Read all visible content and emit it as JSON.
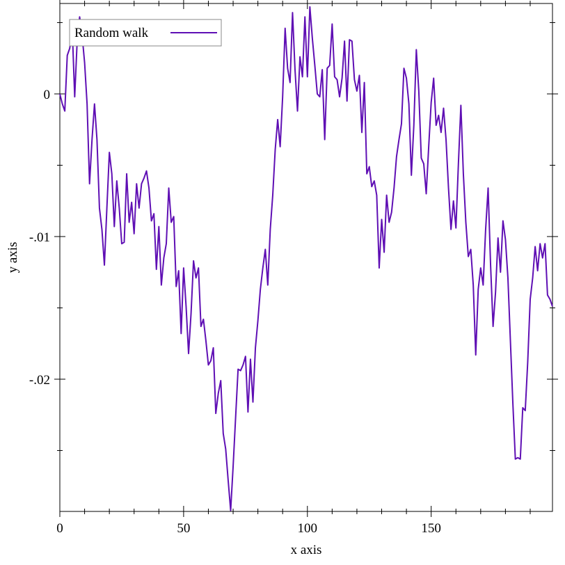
{
  "chart_data": {
    "type": "line",
    "xlabel": "x axis",
    "ylabel": "y axis",
    "x": [
      0,
      1,
      2,
      3,
      4,
      5,
      6,
      7,
      8,
      9,
      10,
      11,
      12,
      13,
      14,
      15,
      16,
      17,
      18,
      19,
      20,
      21,
      22,
      23,
      24,
      25,
      26,
      27,
      28,
      29,
      30,
      31,
      32,
      33,
      34,
      35,
      36,
      37,
      38,
      39,
      40,
      41,
      42,
      43,
      44,
      45,
      46,
      47,
      48,
      49,
      50,
      51,
      52,
      53,
      54,
      55,
      56,
      57,
      58,
      59,
      60,
      61,
      62,
      63,
      64,
      65,
      66,
      67,
      68,
      69,
      70,
      71,
      72,
      73,
      74,
      75,
      76,
      77,
      78,
      79,
      80,
      81,
      82,
      83,
      84,
      85,
      86,
      87,
      88,
      89,
      90,
      91,
      92,
      93,
      94,
      95,
      96,
      97,
      98,
      99,
      100,
      101,
      102,
      103,
      104,
      105,
      106,
      107,
      108,
      109,
      110,
      111,
      112,
      113,
      114,
      115,
      116,
      117,
      118,
      119,
      120,
      121,
      122,
      123,
      124,
      125,
      126,
      127,
      128,
      129,
      130,
      131,
      132,
      133,
      134,
      135,
      136,
      137,
      138,
      139,
      140,
      141,
      142,
      143,
      144,
      145,
      146,
      147,
      148,
      149,
      150,
      151,
      152,
      153,
      154,
      155,
      156,
      157,
      158,
      159,
      160,
      161,
      162,
      163,
      164,
      165,
      166,
      167,
      168,
      169,
      170,
      171,
      172,
      173,
      174,
      175,
      176,
      177,
      178,
      179,
      180,
      181,
      182,
      183,
      184,
      185,
      186,
      187,
      188,
      189,
      190,
      191,
      192,
      193,
      194,
      195,
      196,
      197,
      198,
      199
    ],
    "series": [
      {
        "name": "Random walk",
        "color": "#5f0fb4",
        "values": [
          0,
          -0.0007,
          -0.0012,
          0.0027,
          0.0032,
          0.0046,
          -0.0002,
          0.0037,
          0.0054,
          0.0041,
          0.0022,
          -0.0007,
          -0.0063,
          -0.0032,
          -0.0007,
          -0.0032,
          -0.008,
          -0.0095,
          -0.012,
          -0.008,
          -0.0041,
          -0.0056,
          -0.0093,
          -0.0061,
          -0.008,
          -0.0105,
          -0.0104,
          -0.0056,
          -0.009,
          -0.0076,
          -0.0098,
          -0.0063,
          -0.008,
          -0.0063,
          -0.0059,
          -0.0054,
          -0.0066,
          -0.0089,
          -0.0084,
          -0.0123,
          -0.0093,
          -0.0134,
          -0.0115,
          -0.0105,
          -0.0066,
          -0.009,
          -0.0086,
          -0.0135,
          -0.0124,
          -0.0168,
          -0.0122,
          -0.0149,
          -0.0182,
          -0.0154,
          -0.0117,
          -0.0129,
          -0.0122,
          -0.0163,
          -0.0158,
          -0.0173,
          -0.019,
          -0.0187,
          -0.0178,
          -0.0224,
          -0.021,
          -0.0201,
          -0.0238,
          -0.0249,
          -0.0271,
          -0.0292,
          -0.0261,
          -0.0227,
          -0.0193,
          -0.0194,
          -0.019,
          -0.0184,
          -0.0223,
          -0.0186,
          -0.0216,
          -0.0178,
          -0.0159,
          -0.0137,
          -0.0122,
          -0.0109,
          -0.0134,
          -0.0095,
          -0.0071,
          -0.0039,
          -0.0018,
          -0.0037,
          -0.0002,
          0.0046,
          0.0018,
          0.0008,
          0.0057,
          0.0017,
          -0.0012,
          0.0026,
          0.0012,
          0.0054,
          0.0012,
          0.0061,
          0.0039,
          0.002,
          0,
          -0.0002,
          0.0017,
          -0.0032,
          0.0018,
          0.002,
          0.0049,
          0.0012,
          0.001,
          -0.0002,
          0.0011,
          0.0037,
          -0.0005,
          0.0038,
          0.0037,
          0.001,
          0.0002,
          0.0013,
          -0.0027,
          0.0008,
          -0.0056,
          -0.0051,
          -0.0065,
          -0.0061,
          -0.0071,
          -0.0122,
          -0.0088,
          -0.0111,
          -0.0071,
          -0.009,
          -0.0083,
          -0.0066,
          -0.0044,
          -0.0032,
          -0.0021,
          0.0018,
          0.0011,
          -0.0007,
          -0.0057,
          -0.0022,
          0.0031,
          0.0002,
          -0.0045,
          -0.0049,
          -0.007,
          -0.0037,
          -0.0006,
          0.0011,
          -0.0022,
          -0.0015,
          -0.0027,
          -0.001,
          -0.0032,
          -0.0066,
          -0.0095,
          -0.0075,
          -0.0094,
          -0.0049,
          -0.0008,
          -0.0056,
          -0.009,
          -0.0114,
          -0.0109,
          -0.0134,
          -0.0183,
          -0.0137,
          -0.0122,
          -0.0134,
          -0.0095,
          -0.0066,
          -0.012,
          -0.0163,
          -0.0139,
          -0.0101,
          -0.0125,
          -0.0089,
          -0.0102,
          -0.0129,
          -0.0173,
          -0.0217,
          -0.0256,
          -0.0255,
          -0.0256,
          -0.022,
          -0.0222,
          -0.0188,
          -0.0144,
          -0.0129,
          -0.0107,
          -0.0124,
          -0.0105,
          -0.0115,
          -0.0105,
          -0.0141,
          -0.0144,
          -0.0149
        ]
      }
    ],
    "xlim": [
      0,
      199
    ],
    "ylim": [
      -0.02927,
      0.00634
    ],
    "xticks": [
      0,
      50,
      100,
      150
    ],
    "yticks": [
      {
        "value": -0.02,
        "label": "-.02"
      },
      {
        "value": -0.01,
        "label": "-.01"
      },
      0
    ],
    "xticks_minor": [
      10,
      20,
      30,
      40,
      60,
      70,
      80,
      90,
      110,
      120,
      130,
      140,
      160,
      170,
      180,
      190
    ],
    "yticks_minor": [
      -0.025,
      -0.015,
      -0.005,
      0.005
    ],
    "legend": "top-left"
  }
}
